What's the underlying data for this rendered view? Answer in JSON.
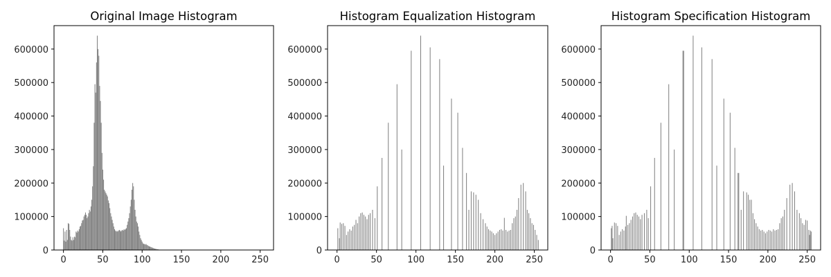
{
  "chart_data": [
    {
      "type": "bar",
      "title": "Original Image Histogram",
      "xlabel": "",
      "ylabel": "",
      "xlim": [
        -12,
        267
      ],
      "ylim": [
        0,
        670000
      ],
      "xticks": [
        "0",
        "50",
        "100",
        "150",
        "200",
        "250"
      ],
      "yticks": [
        "0",
        "100000",
        "200000",
        "300000",
        "400000",
        "500000",
        "600000"
      ],
      "grid": false,
      "bar_color": "#808080",
      "points": [
        [
          0,
          65000
        ],
        [
          1,
          28000
        ],
        [
          2,
          55000
        ],
        [
          3,
          25000
        ],
        [
          4,
          60000
        ],
        [
          5,
          30000
        ],
        [
          6,
          80000
        ],
        [
          7,
          78000
        ],
        [
          8,
          60000
        ],
        [
          9,
          40000
        ],
        [
          10,
          30000
        ],
        [
          11,
          28000
        ],
        [
          12,
          38000
        ],
        [
          13,
          30000
        ],
        [
          14,
          40000
        ],
        [
          15,
          38000
        ],
        [
          16,
          55000
        ],
        [
          17,
          52000
        ],
        [
          18,
          58000
        ],
        [
          19,
          55000
        ],
        [
          20,
          62000
        ],
        [
          21,
          70000
        ],
        [
          22,
          72000
        ],
        [
          23,
          80000
        ],
        [
          24,
          88000
        ],
        [
          25,
          90000
        ],
        [
          26,
          100000
        ],
        [
          27,
          105000
        ],
        [
          28,
          112000
        ],
        [
          29,
          105000
        ],
        [
          30,
          95000
        ],
        [
          31,
          100000
        ],
        [
          32,
          110000
        ],
        [
          33,
          120000
        ],
        [
          34,
          115000
        ],
        [
          35,
          130000
        ],
        [
          36,
          150000
        ],
        [
          37,
          190000
        ],
        [
          38,
          250000
        ],
        [
          39,
          380000
        ],
        [
          40,
          495000
        ],
        [
          41,
          470000
        ],
        [
          42,
          560000
        ],
        [
          43,
          640000
        ],
        [
          44,
          600000
        ],
        [
          45,
          580000
        ],
        [
          46,
          490000
        ],
        [
          47,
          445000
        ],
        [
          48,
          380000
        ],
        [
          49,
          290000
        ],
        [
          50,
          240000
        ],
        [
          51,
          210000
        ],
        [
          52,
          180000
        ],
        [
          53,
          175000
        ],
        [
          54,
          170000
        ],
        [
          55,
          165000
        ],
        [
          56,
          160000
        ],
        [
          57,
          148000
        ],
        [
          58,
          140000
        ],
        [
          59,
          125000
        ],
        [
          60,
          110000
        ],
        [
          61,
          100000
        ],
        [
          62,
          90000
        ],
        [
          63,
          80000
        ],
        [
          64,
          70000
        ],
        [
          65,
          62000
        ],
        [
          66,
          58000
        ],
        [
          67,
          55000
        ],
        [
          68,
          57000
        ],
        [
          69,
          55000
        ],
        [
          70,
          58000
        ],
        [
          71,
          60000
        ],
        [
          72,
          58000
        ],
        [
          73,
          55000
        ],
        [
          74,
          58000
        ],
        [
          75,
          60000
        ],
        [
          76,
          58000
        ],
        [
          77,
          62000
        ],
        [
          78,
          60000
        ],
        [
          79,
          63000
        ],
        [
          80,
          65000
        ],
        [
          81,
          75000
        ],
        [
          82,
          85000
        ],
        [
          83,
          95000
        ],
        [
          84,
          110000
        ],
        [
          85,
          130000
        ],
        [
          86,
          150000
        ],
        [
          87,
          180000
        ],
        [
          88,
          200000
        ],
        [
          89,
          190000
        ],
        [
          90,
          150000
        ],
        [
          91,
          120000
        ],
        [
          92,
          100000
        ],
        [
          93,
          85000
        ],
        [
          94,
          80000
        ],
        [
          95,
          70000
        ],
        [
          96,
          55000
        ],
        [
          97,
          45000
        ],
        [
          98,
          35000
        ],
        [
          99,
          30000
        ],
        [
          100,
          25000
        ],
        [
          101,
          20000
        ],
        [
          102,
          18000
        ],
        [
          103,
          18000
        ],
        [
          104,
          16000
        ],
        [
          105,
          18000
        ],
        [
          106,
          15000
        ],
        [
          107,
          14000
        ],
        [
          108,
          12000
        ],
        [
          109,
          11000
        ],
        [
          110,
          10000
        ],
        [
          111,
          9000
        ],
        [
          112,
          8000
        ],
        [
          113,
          7000
        ],
        [
          114,
          6000
        ],
        [
          115,
          5000
        ],
        [
          116,
          4000
        ],
        [
          117,
          3500
        ],
        [
          118,
          3000
        ],
        [
          119,
          2500
        ],
        [
          120,
          2000
        ],
        [
          121,
          1500
        ],
        [
          122,
          1000
        ],
        [
          123,
          800
        ],
        [
          124,
          600
        ],
        [
          125,
          500
        ],
        [
          126,
          400
        ],
        [
          127,
          300
        ],
        [
          128,
          200
        ],
        [
          129,
          150
        ],
        [
          130,
          100
        ]
      ]
    },
    {
      "type": "bar",
      "title": "Histogram Equalization Histogram",
      "xlabel": "",
      "ylabel": "",
      "xlim": [
        -12,
        267
      ],
      "ylim": [
        0,
        670000
      ],
      "xticks": [
        "0",
        "50",
        "100",
        "150",
        "200",
        "250"
      ],
      "yticks": [
        "0",
        "100000",
        "200000",
        "300000",
        "400000",
        "500000",
        "600000"
      ],
      "grid": false,
      "bar_color": "#808080",
      "points": [
        [
          1,
          65000
        ],
        [
          3,
          35000
        ],
        [
          4,
          82000
        ],
        [
          6,
          78000
        ],
        [
          8,
          80000
        ],
        [
          10,
          72000
        ],
        [
          12,
          45000
        ],
        [
          14,
          55000
        ],
        [
          16,
          62000
        ],
        [
          18,
          58000
        ],
        [
          20,
          70000
        ],
        [
          22,
          75000
        ],
        [
          24,
          90000
        ],
        [
          26,
          80000
        ],
        [
          28,
          100000
        ],
        [
          30,
          110000
        ],
        [
          32,
          112000
        ],
        [
          34,
          105000
        ],
        [
          36,
          100000
        ],
        [
          38,
          92000
        ],
        [
          40,
          105000
        ],
        [
          42,
          110000
        ],
        [
          45,
          120000
        ],
        [
          48,
          95000
        ],
        [
          51,
          190000
        ],
        [
          57,
          275000
        ],
        [
          65,
          380000
        ],
        [
          76,
          495000
        ],
        [
          82,
          300000
        ],
        [
          94,
          595000
        ],
        [
          106,
          640000
        ],
        [
          118,
          605000
        ],
        [
          130,
          570000
        ],
        [
          135,
          252000
        ],
        [
          145,
          452000
        ],
        [
          153,
          410000
        ],
        [
          159,
          305000
        ],
        [
          164,
          230000
        ],
        [
          167,
          120000
        ],
        [
          170,
          175000
        ],
        [
          173,
          172000
        ],
        [
          176,
          165000
        ],
        [
          179,
          150000
        ],
        [
          182,
          110000
        ],
        [
          185,
          92000
        ],
        [
          188,
          80000
        ],
        [
          190,
          70000
        ],
        [
          192,
          62000
        ],
        [
          194,
          58000
        ],
        [
          196,
          55000
        ],
        [
          198,
          50000
        ],
        [
          200,
          45000
        ],
        [
          202,
          50000
        ],
        [
          204,
          55000
        ],
        [
          206,
          60000
        ],
        [
          208,
          62000
        ],
        [
          210,
          58000
        ],
        [
          212,
          96000
        ],
        [
          214,
          60000
        ],
        [
          216,
          55000
        ],
        [
          218,
          58000
        ],
        [
          220,
          60000
        ],
        [
          222,
          80000
        ],
        [
          224,
          95000
        ],
        [
          226,
          100000
        ],
        [
          228,
          120000
        ],
        [
          230,
          155000
        ],
        [
          233,
          195000
        ],
        [
          236,
          200000
        ],
        [
          239,
          175000
        ],
        [
          241,
          120000
        ],
        [
          243,
          110000
        ],
        [
          245,
          95000
        ],
        [
          247,
          80000
        ],
        [
          249,
          75000
        ],
        [
          251,
          60000
        ],
        [
          253,
          45000
        ],
        [
          255,
          30000
        ]
      ]
    },
    {
      "type": "bar",
      "title": "Histogram Specification Histogram",
      "xlabel": "",
      "ylabel": "",
      "xlim": [
        -12,
        267
      ],
      "ylim": [
        0,
        670000
      ],
      "xticks": [
        "0",
        "50",
        "100",
        "150",
        "200",
        "250"
      ],
      "yticks": [
        "0",
        "100000",
        "200000",
        "300000",
        "400000",
        "500000",
        "600000"
      ],
      "grid": false,
      "bar_color": "#808080",
      "points": [
        [
          1,
          65000
        ],
        [
          2,
          72000
        ],
        [
          3,
          35000
        ],
        [
          5,
          82000
        ],
        [
          7,
          80000
        ],
        [
          9,
          72000
        ],
        [
          11,
          45000
        ],
        [
          13,
          55000
        ],
        [
          15,
          62000
        ],
        [
          17,
          58000
        ],
        [
          19,
          70000
        ],
        [
          20,
          102000
        ],
        [
          22,
          75000
        ],
        [
          24,
          80000
        ],
        [
          26,
          90000
        ],
        [
          28,
          100000
        ],
        [
          30,
          110000
        ],
        [
          32,
          112000
        ],
        [
          34,
          105000
        ],
        [
          36,
          100000
        ],
        [
          38,
          92000
        ],
        [
          40,
          105000
        ],
        [
          43,
          110000
        ],
        [
          46,
          120000
        ],
        [
          48,
          95000
        ],
        [
          51,
          190000
        ],
        [
          56,
          275000
        ],
        [
          64,
          380000
        ],
        [
          74,
          495000
        ],
        [
          81,
          300000
        ],
        [
          92,
          595000
        ],
        [
          93,
          595000
        ],
        [
          105,
          640000
        ],
        [
          116,
          605000
        ],
        [
          129,
          570000
        ],
        [
          135,
          252000
        ],
        [
          144,
          452000
        ],
        [
          152,
          410000
        ],
        [
          158,
          305000
        ],
        [
          162,
          230000
        ],
        [
          163,
          230000
        ],
        [
          166,
          120000
        ],
        [
          169,
          175000
        ],
        [
          173,
          172000
        ],
        [
          175,
          165000
        ],
        [
          177,
          150000
        ],
        [
          179,
          150000
        ],
        [
          181,
          110000
        ],
        [
          183,
          92000
        ],
        [
          185,
          80000
        ],
        [
          187,
          70000
        ],
        [
          189,
          62000
        ],
        [
          191,
          58000
        ],
        [
          193,
          60000
        ],
        [
          195,
          55000
        ],
        [
          197,
          50000
        ],
        [
          199,
          55000
        ],
        [
          201,
          60000
        ],
        [
          203,
          58000
        ],
        [
          205,
          55000
        ],
        [
          207,
          62000
        ],
        [
          209,
          58000
        ],
        [
          211,
          60000
        ],
        [
          213,
          62000
        ],
        [
          215,
          80000
        ],
        [
          217,
          95000
        ],
        [
          219,
          100000
        ],
        [
          221,
          120000
        ],
        [
          224,
          155000
        ],
        [
          228,
          195000
        ],
        [
          231,
          200000
        ],
        [
          234,
          175000
        ],
        [
          237,
          120000
        ],
        [
          240,
          110000
        ],
        [
          242,
          95000
        ],
        [
          244,
          80000
        ],
        [
          246,
          75000
        ],
        [
          248,
          90000
        ],
        [
          250,
          88000
        ],
        [
          252,
          60000
        ],
        [
          253,
          45000
        ],
        [
          254,
          58000
        ],
        [
          255,
          55000
        ]
      ]
    }
  ]
}
